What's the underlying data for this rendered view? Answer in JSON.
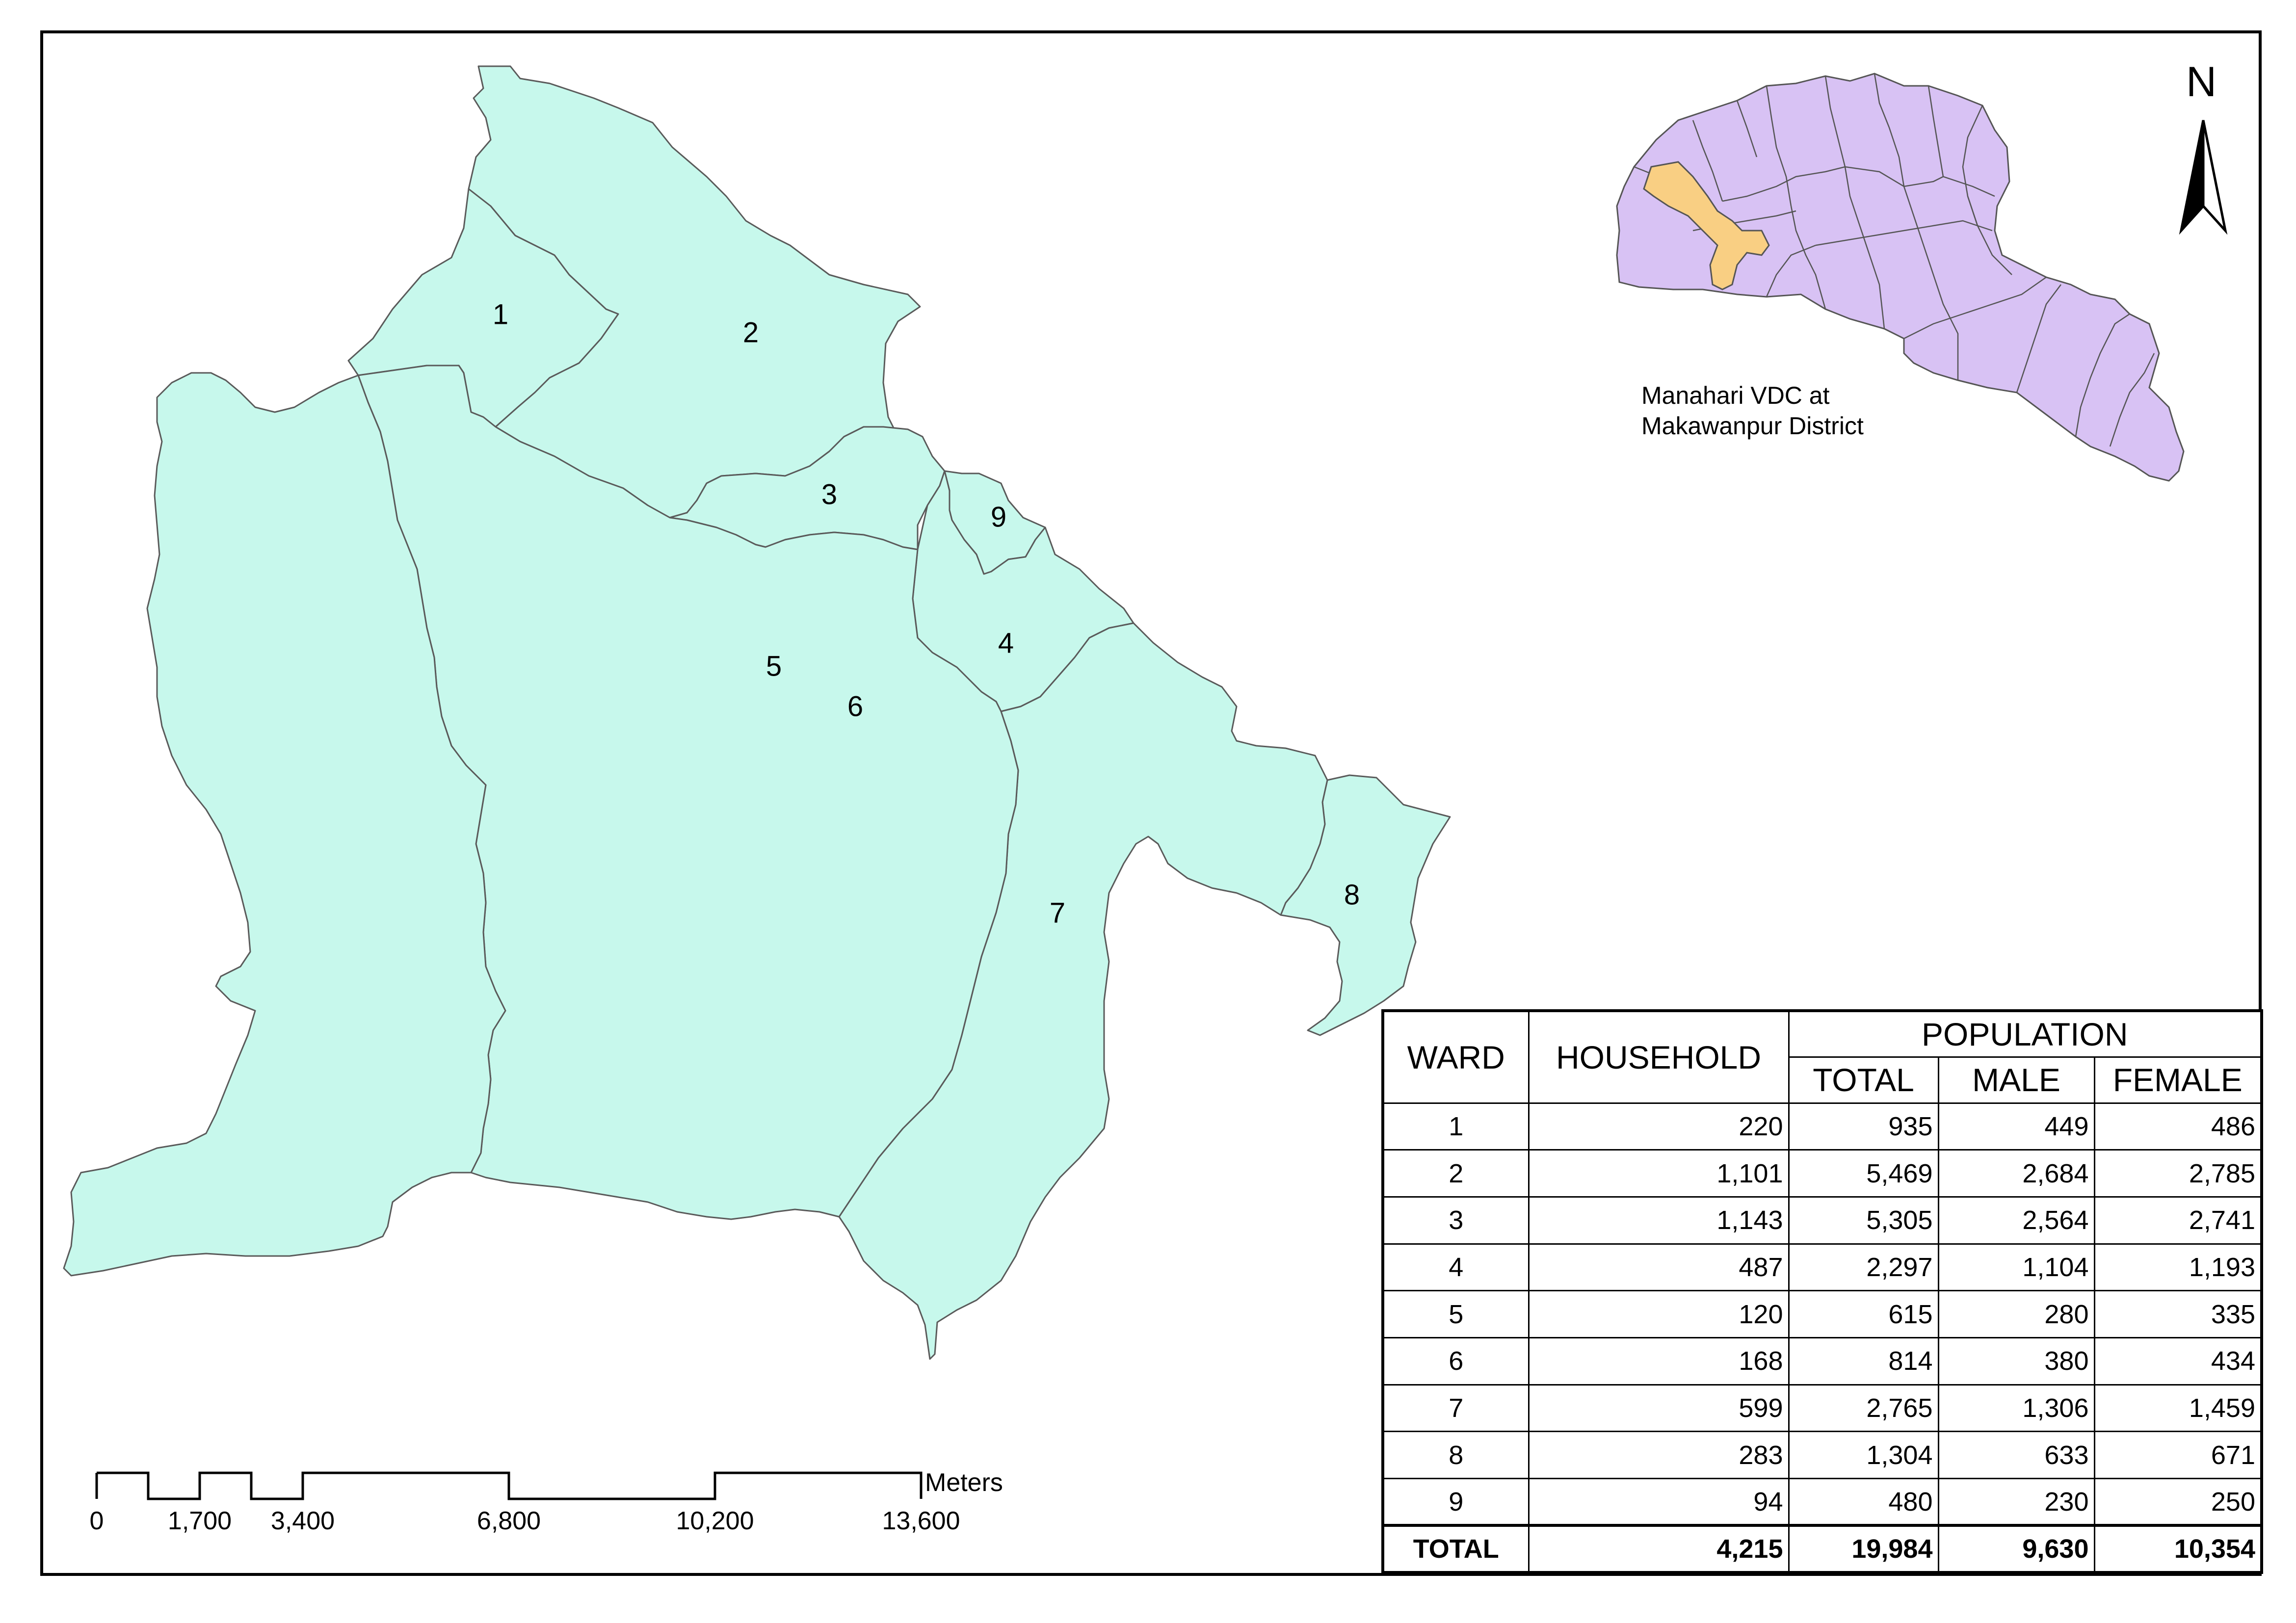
{
  "map": {
    "ward_labels": [
      "1",
      "2",
      "3",
      "4",
      "5",
      "6",
      "7",
      "8",
      "9"
    ],
    "ward_fill": "#c7f8ec",
    "boundary_color": "#5a5a5a"
  },
  "inset": {
    "caption_line1": "Manahari  VDC at",
    "caption_line2": "Makawanpur District",
    "district_fill": "#d8c2f4",
    "highlight_fill": "#f9cf83"
  },
  "north_arrow": {
    "letter": "N",
    "icon": "north-arrow-icon"
  },
  "scale_bar": {
    "unit": "Meters",
    "ticks": [
      "0",
      "1,700",
      "3,400",
      "6,800",
      "10,200",
      "13,600"
    ]
  },
  "table": {
    "headers": {
      "ward": "WARD",
      "household": "HOUSEHOLD",
      "population": "POPULATION",
      "total": "TOTAL",
      "male": "MALE",
      "female": "FEMALE"
    },
    "rows": [
      {
        "ward": "1",
        "household": "220",
        "total": "935",
        "male": "449",
        "female": "486"
      },
      {
        "ward": "2",
        "household": "1,101",
        "total": "5,469",
        "male": "2,684",
        "female": "2,785"
      },
      {
        "ward": "3",
        "household": "1,143",
        "total": "5,305",
        "male": "2,564",
        "female": "2,741"
      },
      {
        "ward": "4",
        "household": "487",
        "total": "2,297",
        "male": "1,104",
        "female": "1,193"
      },
      {
        "ward": "5",
        "household": "120",
        "total": "615",
        "male": "280",
        "female": "335"
      },
      {
        "ward": "6",
        "household": "168",
        "total": "814",
        "male": "380",
        "female": "434"
      },
      {
        "ward": "7",
        "household": "599",
        "total": "2,765",
        "male": "1,306",
        "female": "1,459"
      },
      {
        "ward": "8",
        "household": "283",
        "total": "1,304",
        "male": "633",
        "female": "671"
      },
      {
        "ward": "9",
        "household": "94",
        "total": "480",
        "male": "230",
        "female": "250"
      }
    ],
    "total_row": {
      "ward": "TOTAL",
      "household": "4,215",
      "total": "19,984",
      "male": "9,630",
      "female": "10,354"
    }
  }
}
